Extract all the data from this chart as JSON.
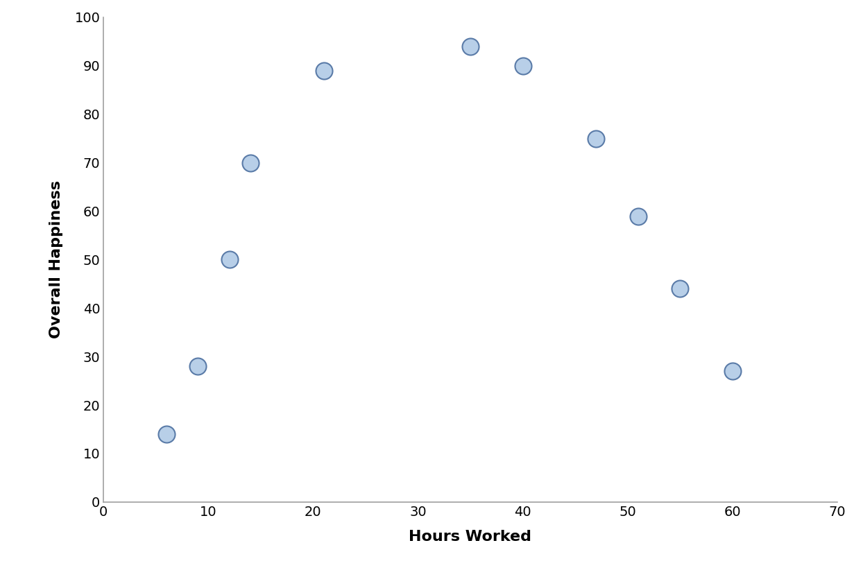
{
  "x": [
    6,
    9,
    12,
    14,
    21,
    35,
    40,
    47,
    51,
    55,
    60
  ],
  "y": [
    14,
    28,
    50,
    70,
    89,
    94,
    90,
    75,
    59,
    44,
    27
  ],
  "xlabel": "Hours Worked",
  "ylabel": "Overall Happiness",
  "xlim": [
    0,
    70
  ],
  "ylim": [
    0,
    100
  ],
  "xticks": [
    0,
    10,
    20,
    30,
    40,
    50,
    60,
    70
  ],
  "yticks": [
    0,
    10,
    20,
    30,
    40,
    50,
    60,
    70,
    80,
    90,
    100
  ],
  "marker_facecolor": "#b8cfe8",
  "marker_edgecolor": "#5a7ba8",
  "marker_size": 300,
  "marker_linewidth": 1.5,
  "xlabel_fontsize": 16,
  "ylabel_fontsize": 16,
  "tick_fontsize": 14,
  "spine_color": "#a0a0a0",
  "background_color": "#ffffff"
}
